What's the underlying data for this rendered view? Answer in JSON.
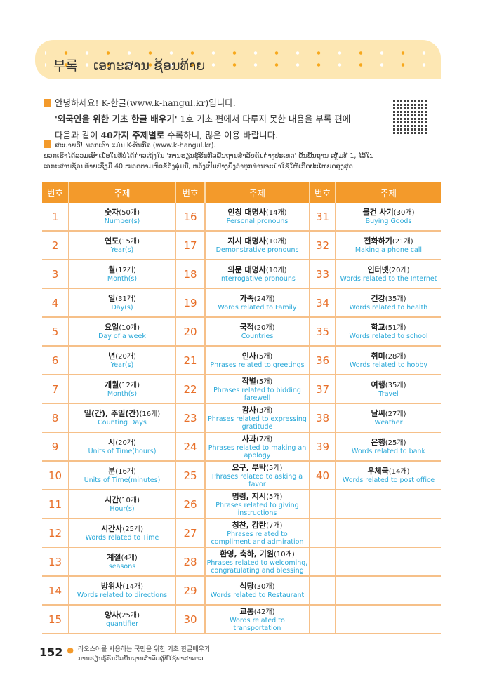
{
  "banner": {
    "title_ko": "부록",
    "title_lao": "ເອກະສານ ຊ້ອນທ້າຍ"
  },
  "intro": {
    "ko_line1": "안녕하세요! K-한글(www.k-hangul.kr)입니다.",
    "ko_line2_bold": "'외국인을 위한 기초 한글 배우기'",
    "ko_line2_rest": " 1호 기초 편에서 다루지 못한 내용을 부록 편에",
    "ko_line3_a": "다음과 같이 ",
    "ko_line3_bold": "40가지 주제별로",
    "ko_line3_b": " 수록하니, 많은 이용 바랍니다.",
    "lao_line1": "ສະບາຍດີ! ພວກເຮົາ ແມ່ນ K-ຮັນກືລ (www.k-hangul.kr).",
    "lao_line2": "ພວກເຮົາໄດ້ລວມເອົາເນື້ອໃນທີ່ບໍ່ໄດ້ກ່າວເຖິງໃນ 'ການຮຽນຮູ້ຮັນກືລພື້ນຖານສຳລັບຄົນຕ່າງປະເທດ' ຂັ້ນພື້ນຖານ ເຫຼັ້ມທີ 1, ໄວ້ໃນ",
    "lao_line3": "ເອກະສານຊ້ອນທ້າຍເຊິ່ງມີ 40 ໝວດຕາມຫົວຂໍ້ດັ່ງລຸ່ມນີ້, ຫວັງເປັນຢ່າງຍິ່ງວ່າທຸກທ່ານຈະນຳໃຊ້ໃຫ້ເກີດປະໂຫຍດສູງສຸດ"
  },
  "table": {
    "headers": [
      "번호",
      "주제",
      "번호",
      "주제",
      "번호",
      "주제"
    ],
    "rows": [
      [
        {
          "n": "1",
          "ko": "숫자",
          "c": "(50개)",
          "en": "Number(s)"
        },
        {
          "n": "16",
          "ko": "인칭 대명사",
          "c": "(14개)",
          "en": "Personal pronouns"
        },
        {
          "n": "31",
          "ko": "물건 사기",
          "c": "(30개)",
          "en": "Buying Goods"
        }
      ],
      [
        {
          "n": "2",
          "ko": "연도",
          "c": "(15개)",
          "en": "Year(s)"
        },
        {
          "n": "17",
          "ko": "지시 대명사",
          "c": "(10개)",
          "en": "Demonstrative pronouns"
        },
        {
          "n": "32",
          "ko": "전화하기",
          "c": "(21개)",
          "en": "Making a phone call"
        }
      ],
      [
        {
          "n": "3",
          "ko": "월",
          "c": "(12개)",
          "en": "Month(s)"
        },
        {
          "n": "18",
          "ko": "의문 대명사",
          "c": "(10개)",
          "en": "Interrogative pronouns"
        },
        {
          "n": "33",
          "ko": "인터넷",
          "c": "(20개)",
          "en": "Words related to the Internet"
        }
      ],
      [
        {
          "n": "4",
          "ko": "일",
          "c": "(31개)",
          "en": "Day(s)"
        },
        {
          "n": "19",
          "ko": "가족",
          "c": "(24개)",
          "en": "Words related to Family"
        },
        {
          "n": "34",
          "ko": "건강",
          "c": "(35개)",
          "en": "Words related to health"
        }
      ],
      [
        {
          "n": "5",
          "ko": "요일",
          "c": "(10개)",
          "en": "Day of a week"
        },
        {
          "n": "20",
          "ko": "국적",
          "c": "(20개)",
          "en": "Countries"
        },
        {
          "n": "35",
          "ko": "학교",
          "c": "(51개)",
          "en": "Words related to school"
        }
      ],
      [
        {
          "n": "6",
          "ko": "년",
          "c": "(20개)",
          "en": "Year(s)"
        },
        {
          "n": "21",
          "ko": "인사",
          "c": "(5개)",
          "en": "Phrases related to greetings"
        },
        {
          "n": "36",
          "ko": "취미",
          "c": "(28개)",
          "en": "Words related to hobby"
        }
      ],
      [
        {
          "n": "7",
          "ko": "개월",
          "c": "(12개)",
          "en": "Month(s)"
        },
        {
          "n": "22",
          "ko": "작별",
          "c": "(5개)",
          "en": "Phrases related to bidding farewell"
        },
        {
          "n": "37",
          "ko": "여행",
          "c": "(35개)",
          "en": "Travel"
        }
      ],
      [
        {
          "n": "8",
          "ko": "일(간), 주일(간)",
          "c": "(16개)",
          "en": "Counting Days"
        },
        {
          "n": "23",
          "ko": "감사",
          "c": "(3개)",
          "en": "Phrases related to expressing gratitude"
        },
        {
          "n": "38",
          "ko": "날씨",
          "c": "(27개)",
          "en": "Weather"
        }
      ],
      [
        {
          "n": "9",
          "ko": "시",
          "c": "(20개)",
          "en": "Units of Time(hours)"
        },
        {
          "n": "24",
          "ko": "사과",
          "c": "(7개)",
          "en": "Phrases related to making an apology"
        },
        {
          "n": "39",
          "ko": "은행",
          "c": "(25개)",
          "en": "Words related to bank"
        }
      ],
      [
        {
          "n": "10",
          "ko": "분",
          "c": "(16개)",
          "en": "Units of Time(minutes)"
        },
        {
          "n": "25",
          "ko": "요구, 부탁",
          "c": "(5개)",
          "en": "Phrases related to asking a favor"
        },
        {
          "n": "40",
          "ko": "우체국",
          "c": "(14개)",
          "en": "Words related to post office"
        }
      ],
      [
        {
          "n": "11",
          "ko": "시간",
          "c": "(10개)",
          "en": "Hour(s)"
        },
        {
          "n": "26",
          "ko": "명령, 지시",
          "c": "(5개)",
          "en": "Phrases related to giving instructions"
        },
        null
      ],
      [
        {
          "n": "12",
          "ko": "시간사",
          "c": "(25개)",
          "en": "Words related to Time"
        },
        {
          "n": "27",
          "ko": "칭찬, 감탄",
          "c": "(7개)",
          "en": "Phrases related to compliment and admiration"
        },
        null
      ],
      [
        {
          "n": "13",
          "ko": "계절",
          "c": "(4개)",
          "en": "seasons"
        },
        {
          "n": "28",
          "ko": "환영, 축하, 기원",
          "c": "(10개)",
          "en": "Phrases related to welcoming, congratulating and blessing"
        },
        null
      ],
      [
        {
          "n": "14",
          "ko": "방위사",
          "c": "(14개)",
          "en": "Words related to directions"
        },
        {
          "n": "29",
          "ko": "식당",
          "c": "(30개)",
          "en": "Words related to Restaurant"
        },
        null
      ],
      [
        {
          "n": "15",
          "ko": "양사",
          "c": "(25개)",
          "en": "quantifier"
        },
        {
          "n": "30",
          "ko": "교통",
          "c": "(42개)",
          "en": "Words related to transportation"
        },
        null
      ]
    ]
  },
  "footer": {
    "page_number": "152",
    "line1": "라오스어를 사용하는 국민을 위한 기초 한글배우기",
    "line2": "ການຮຽນຮູ້ຮັນກືລພື້ນຖານສຳລັບຜູ້ທີ່ໃຊ້ພາສາລາວ"
  },
  "colors": {
    "accent": "#f39a2b",
    "number": "#e8702a",
    "english": "#29a8d8",
    "banner": "#fde7b3"
  }
}
